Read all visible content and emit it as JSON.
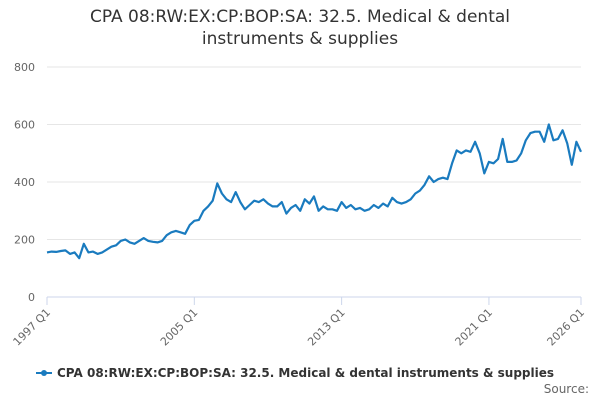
{
  "chart_data": {
    "type": "line",
    "title": "CPA 08:RW:EX:CP:BOP:SA: 32.5. Medical & dental instruments & supplies",
    "source": "Source:",
    "categories": [
      "1997 Q1",
      null,
      null,
      null,
      null,
      null,
      null,
      null,
      null,
      null,
      null,
      null,
      null,
      null,
      null,
      null,
      null,
      null,
      null,
      null,
      null,
      null,
      null,
      null,
      null,
      null,
      null,
      null,
      null,
      null,
      null,
      null,
      "2005 Q1",
      null,
      null,
      null,
      null,
      null,
      null,
      null,
      null,
      null,
      null,
      null,
      null,
      null,
      null,
      null,
      null,
      null,
      null,
      null,
      null,
      null,
      null,
      null,
      null,
      null,
      null,
      null,
      null,
      null,
      null,
      null,
      "2013 Q1",
      null,
      null,
      null,
      null,
      null,
      null,
      null,
      null,
      null,
      null,
      null,
      null,
      null,
      null,
      null,
      null,
      null,
      null,
      null,
      null,
      null,
      null,
      null,
      null,
      null,
      null,
      null,
      null,
      null,
      null,
      null,
      "2021 Q1",
      null,
      null,
      null,
      null,
      null,
      null,
      null,
      null,
      null,
      null,
      null,
      null,
      null,
      null,
      null,
      null,
      null,
      null,
      null,
      "2026 Q1"
    ],
    "series": [
      {
        "name": "CPA 08:RW:EX:CP:BOP:SA: 32.5. Medical & dental instruments & supplies",
        "color": "#1a7bbf",
        "values": [
          155,
          158,
          157,
          160,
          162,
          150,
          155,
          135,
          185,
          155,
          158,
          150,
          155,
          165,
          175,
          180,
          195,
          200,
          190,
          185,
          195,
          205,
          195,
          192,
          190,
          195,
          215,
          225,
          230,
          225,
          220,
          250,
          265,
          268,
          300,
          315,
          335,
          395,
          360,
          340,
          330,
          365,
          330,
          305,
          320,
          335,
          330,
          340,
          325,
          315,
          315,
          330,
          290,
          310,
          320,
          300,
          340,
          325,
          350,
          300,
          315,
          305,
          305,
          300,
          330,
          310,
          320,
          305,
          310,
          300,
          305,
          320,
          310,
          325,
          315,
          345,
          330,
          325,
          330,
          340,
          360,
          370,
          390,
          420,
          400,
          410,
          415,
          410,
          465,
          510,
          500,
          510,
          505,
          540,
          500,
          430,
          470,
          465,
          480,
          550,
          470,
          470,
          475,
          500,
          545,
          570,
          575,
          575,
          540,
          600,
          545,
          550,
          580,
          535,
          460,
          540,
          505
        ]
      }
    ],
    "ylim": [
      0,
      800
    ],
    "yticks": [
      0,
      200,
      400,
      600,
      800
    ],
    "grid": true
  }
}
